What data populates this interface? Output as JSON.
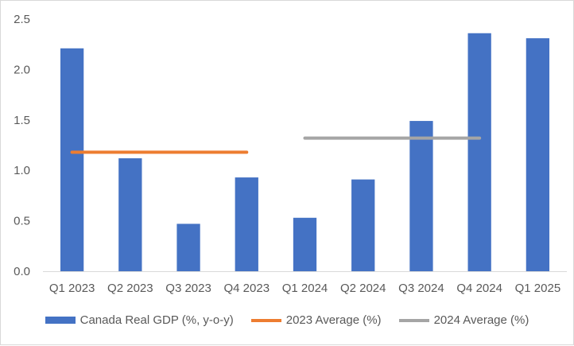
{
  "chart_data": {
    "type": "bar",
    "categories": [
      "Q1 2023",
      "Q2 2023",
      "Q3 2023",
      "Q4 2023",
      "Q1 2024",
      "Q2 2024",
      "Q3 2024",
      "Q4 2024",
      "Q1 2025"
    ],
    "series": [
      {
        "name": "Canada Real GDP (%, y-o-y)",
        "type": "bar",
        "color": "#4472c4",
        "values": [
          2.21,
          1.12,
          0.47,
          0.93,
          0.53,
          0.91,
          1.49,
          2.36,
          2.31
        ]
      }
    ],
    "reference_lines": [
      {
        "name": "2023 Average (%)",
        "color": "#ed7d31",
        "value": 1.18,
        "from": "Q1 2023",
        "to": "Q4 2023"
      },
      {
        "name": "2024 Average (%)",
        "color": "#a5a5a5",
        "value": 1.32,
        "from": "Q1 2024",
        "to": "Q4 2024"
      }
    ],
    "yticks": [
      "0.0",
      "0.5",
      "1.0",
      "1.5",
      "2.0",
      "2.5"
    ],
    "ylim": [
      0,
      2.5
    ],
    "grid": false,
    "legend": "bottom",
    "title": "",
    "xlabel": "",
    "ylabel": ""
  }
}
